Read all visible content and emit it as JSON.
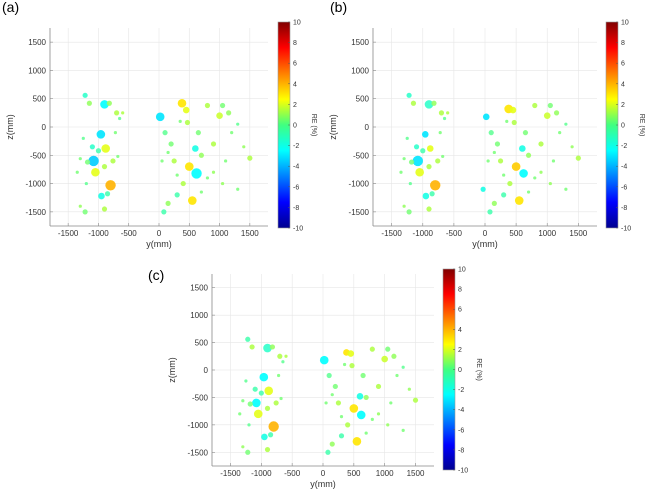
{
  "chart_data": [
    {
      "panel": "(a)",
      "type": "scatter",
      "xlabel": "y(mm)",
      "ylabel": "z(mm)",
      "xlim": [
        -1800,
        1800
      ],
      "ylim": [
        -1750,
        1750
      ],
      "xticks": [
        -1500,
        -1000,
        -500,
        0,
        500,
        1000,
        1500
      ],
      "yticks": [
        -1500,
        -1000,
        -500,
        0,
        500,
        1000,
        1500
      ],
      "grid": true,
      "colorbar": {
        "label": "RE (%)",
        "range": [
          -10,
          10
        ],
        "ticks": [
          -10,
          -8,
          -6,
          -4,
          -2,
          0,
          2,
          4,
          6,
          8,
          10
        ],
        "colormap": "jet"
      },
      "points": [
        [
          -1220,
          560,
          -1.5,
          2
        ],
        [
          -1150,
          420,
          0.5,
          2
        ],
        [
          -900,
          400,
          -2.5,
          4
        ],
        [
          -820,
          420,
          0.5,
          2
        ],
        [
          -700,
          250,
          1,
          2
        ],
        [
          -600,
          250,
          1,
          1
        ],
        [
          -960,
          -130,
          -3,
          4
        ],
        [
          -880,
          -380,
          2,
          4
        ],
        [
          -1000,
          -420,
          -1,
          2
        ],
        [
          -1080,
          -600,
          -3.5,
          5
        ],
        [
          -1180,
          -620,
          0,
          2
        ],
        [
          -1300,
          -560,
          0,
          1
        ],
        [
          -1100,
          -350,
          -1.5,
          2
        ],
        [
          -1050,
          -800,
          2,
          4
        ],
        [
          -760,
          -600,
          1,
          2
        ],
        [
          -680,
          -520,
          0,
          1
        ],
        [
          -900,
          -700,
          1,
          2
        ],
        [
          -800,
          -1030,
          4,
          5
        ],
        [
          -1200,
          -1000,
          -0.5,
          1
        ],
        [
          -950,
          -1220,
          -2,
          3
        ],
        [
          -850,
          -1180,
          -1,
          2
        ],
        [
          -900,
          -1450,
          1,
          2
        ],
        [
          -1220,
          -1500,
          0,
          2
        ],
        [
          -1300,
          -1400,
          0.5,
          1
        ],
        [
          -1350,
          -800,
          0,
          1
        ],
        [
          -1250,
          -200,
          -0.5,
          1
        ],
        [
          -720,
          -100,
          0,
          1
        ],
        [
          -650,
          150,
          -0.5,
          1
        ],
        [
          20,
          180,
          -3,
          4
        ],
        [
          100,
          -100,
          -0.5,
          2
        ],
        [
          200,
          -300,
          0,
          2
        ],
        [
          250,
          -600,
          1,
          2
        ],
        [
          380,
          420,
          3,
          4
        ],
        [
          450,
          300,
          2,
          3
        ],
        [
          470,
          80,
          1,
          2
        ],
        [
          500,
          -700,
          3,
          4
        ],
        [
          620,
          -820,
          -2.5,
          5
        ],
        [
          600,
          -380,
          -2,
          3
        ],
        [
          650,
          -100,
          0,
          2
        ],
        [
          700,
          -500,
          0.5,
          2
        ],
        [
          800,
          380,
          1,
          2
        ],
        [
          900,
          -300,
          1,
          2
        ],
        [
          1000,
          200,
          1.5,
          3
        ],
        [
          1050,
          380,
          0,
          2
        ],
        [
          1150,
          250,
          0.5,
          2
        ],
        [
          1200,
          -100,
          0,
          1
        ],
        [
          1300,
          50,
          -0.5,
          1
        ],
        [
          1400,
          -350,
          0.5,
          1
        ],
        [
          1500,
          -550,
          1,
          2
        ],
        [
          550,
          -1300,
          3,
          4
        ],
        [
          400,
          -1000,
          1,
          2
        ],
        [
          300,
          -1200,
          -1,
          2
        ],
        [
          150,
          -1350,
          0.5,
          2
        ],
        [
          80,
          -1500,
          -1,
          2
        ],
        [
          700,
          -1150,
          0,
          1
        ],
        [
          900,
          -800,
          0.5,
          1
        ],
        [
          1100,
          -600,
          0,
          1
        ],
        [
          1300,
          -1100,
          0,
          1
        ],
        [
          50,
          -600,
          0,
          1
        ],
        [
          150,
          -450,
          0,
          1
        ],
        [
          350,
          100,
          0,
          1
        ],
        [
          300,
          -850,
          0,
          1
        ],
        [
          800,
          -900,
          0,
          1
        ],
        [
          1050,
          -1000,
          0.5,
          1
        ]
      ]
    },
    {
      "panel": "(b)",
      "type": "scatter",
      "xlabel": "y(mm)",
      "ylabel": "z(mm)",
      "xlim": [
        -1800,
        1800
      ],
      "ylim": [
        -1750,
        1750
      ],
      "xticks": [
        -1500,
        -1000,
        -500,
        0,
        500,
        1000,
        1500
      ],
      "yticks": [
        -1500,
        -1000,
        -500,
        0,
        500,
        1000,
        1500
      ],
      "grid": true,
      "colorbar": {
        "label": "RE (%)",
        "range": [
          -10,
          10
        ],
        "ticks": [
          -10,
          -8,
          -6,
          -4,
          -2,
          0,
          2,
          4,
          6,
          8,
          10
        ],
        "colormap": "jet"
      },
      "points": [
        [
          -1220,
          560,
          -1.5,
          2
        ],
        [
          -1150,
          420,
          1,
          2
        ],
        [
          -900,
          400,
          -1.5,
          4
        ],
        [
          -820,
          420,
          0.5,
          2
        ],
        [
          -700,
          250,
          1,
          2
        ],
        [
          -600,
          250,
          1,
          1
        ],
        [
          -960,
          -130,
          -3,
          3
        ],
        [
          -880,
          -380,
          2,
          3
        ],
        [
          -1000,
          -420,
          -1,
          2
        ],
        [
          -1080,
          -600,
          -3,
          5
        ],
        [
          -1180,
          -620,
          0,
          2
        ],
        [
          -1300,
          -560,
          0,
          1
        ],
        [
          -1100,
          -350,
          -1.5,
          2
        ],
        [
          -1050,
          -800,
          2,
          4
        ],
        [
          -760,
          -600,
          1,
          2
        ],
        [
          -680,
          -520,
          0,
          1
        ],
        [
          -900,
          -700,
          1,
          2
        ],
        [
          -800,
          -1030,
          4,
          5
        ],
        [
          -1200,
          -1000,
          -0.5,
          1
        ],
        [
          -950,
          -1220,
          -2,
          3
        ],
        [
          -850,
          -1180,
          -1,
          2
        ],
        [
          -900,
          -1450,
          1,
          2
        ],
        [
          -1220,
          -1500,
          0,
          2
        ],
        [
          -1300,
          -1400,
          0.5,
          1
        ],
        [
          -1350,
          -800,
          0,
          1
        ],
        [
          -1250,
          -200,
          -0.5,
          1
        ],
        [
          -720,
          -100,
          0,
          1
        ],
        [
          -650,
          150,
          -0.5,
          1
        ],
        [
          20,
          180,
          -3,
          3
        ],
        [
          100,
          -100,
          -0.5,
          2
        ],
        [
          200,
          -300,
          0,
          2
        ],
        [
          250,
          -600,
          1,
          2
        ],
        [
          380,
          320,
          3,
          4
        ],
        [
          450,
          300,
          2,
          3
        ],
        [
          470,
          80,
          1,
          2
        ],
        [
          500,
          -700,
          3.5,
          4
        ],
        [
          620,
          -820,
          -2.5,
          4
        ],
        [
          600,
          -380,
          -2,
          3
        ],
        [
          650,
          -100,
          0,
          2
        ],
        [
          700,
          -500,
          0.5,
          2
        ],
        [
          800,
          380,
          1,
          2
        ],
        [
          900,
          -300,
          1,
          2
        ],
        [
          1000,
          200,
          1.5,
          3
        ],
        [
          1050,
          380,
          0,
          2
        ],
        [
          1150,
          250,
          0.5,
          2
        ],
        [
          1200,
          -100,
          0,
          1
        ],
        [
          1300,
          50,
          -0.5,
          1
        ],
        [
          1400,
          -350,
          0.5,
          1
        ],
        [
          1500,
          -550,
          1,
          2
        ],
        [
          550,
          -1300,
          3,
          4
        ],
        [
          400,
          -1000,
          1,
          2
        ],
        [
          300,
          -1200,
          -1,
          2
        ],
        [
          150,
          -1350,
          0.5,
          2
        ],
        [
          80,
          -1500,
          -1,
          2
        ],
        [
          700,
          -1150,
          0,
          1
        ],
        [
          900,
          -800,
          0.5,
          1
        ],
        [
          1100,
          -600,
          0,
          1
        ],
        [
          1300,
          -1100,
          0,
          1
        ],
        [
          -30,
          -1100,
          -2,
          2
        ],
        [
          50,
          -600,
          0,
          1
        ],
        [
          150,
          -450,
          0,
          1
        ],
        [
          350,
          100,
          0,
          1
        ],
        [
          300,
          -850,
          0,
          1
        ],
        [
          800,
          -900,
          0,
          1
        ],
        [
          1050,
          -1000,
          0.5,
          1
        ]
      ]
    },
    {
      "panel": "(c)",
      "type": "scatter",
      "xlabel": "y(mm)",
      "ylabel": "z(mm)",
      "xlim": [
        -1800,
        1800
      ],
      "ylim": [
        -1750,
        1750
      ],
      "xticks": [
        -1500,
        -1000,
        -500,
        0,
        500,
        1000,
        1500
      ],
      "yticks": [
        -1500,
        -1000,
        -500,
        0,
        500,
        1000,
        1500
      ],
      "grid": true,
      "colorbar": {
        "label": "RE (%)",
        "range": [
          -10,
          10
        ],
        "ticks": [
          -10,
          -8,
          -6,
          -4,
          -2,
          0,
          2,
          4,
          6,
          8,
          10
        ],
        "colormap": "jet"
      },
      "points": [
        [
          -1220,
          560,
          -1,
          2
        ],
        [
          -1150,
          420,
          1,
          2
        ],
        [
          -900,
          400,
          -1.5,
          4
        ],
        [
          -820,
          420,
          0.5,
          2
        ],
        [
          -700,
          250,
          1,
          2
        ],
        [
          -600,
          250,
          1,
          1
        ],
        [
          -960,
          -130,
          -2.5,
          4
        ],
        [
          -880,
          -380,
          2,
          4
        ],
        [
          -1000,
          -420,
          -1,
          2
        ],
        [
          -1080,
          -600,
          -2.5,
          4
        ],
        [
          -1180,
          -620,
          0,
          2
        ],
        [
          -1300,
          -560,
          0,
          1
        ],
        [
          -1100,
          -350,
          -1,
          2
        ],
        [
          -1050,
          -800,
          2,
          4
        ],
        [
          -760,
          -600,
          1,
          2
        ],
        [
          -680,
          -520,
          0,
          1
        ],
        [
          -900,
          -700,
          1,
          2
        ],
        [
          -800,
          -1030,
          4,
          5
        ],
        [
          -1200,
          -1000,
          -0.5,
          1
        ],
        [
          -950,
          -1220,
          -2,
          3
        ],
        [
          -850,
          -1180,
          -1,
          2
        ],
        [
          -900,
          -1450,
          1,
          2
        ],
        [
          -1220,
          -1500,
          0,
          2
        ],
        [
          -1300,
          -1400,
          0.5,
          1
        ],
        [
          -1350,
          -800,
          0,
          1
        ],
        [
          -1250,
          -200,
          -0.5,
          1
        ],
        [
          -720,
          -100,
          0,
          1
        ],
        [
          -650,
          150,
          -0.5,
          1
        ],
        [
          20,
          180,
          -2.5,
          4
        ],
        [
          100,
          -100,
          -0.5,
          2
        ],
        [
          200,
          -300,
          0,
          2
        ],
        [
          250,
          -600,
          1,
          2
        ],
        [
          380,
          320,
          3,
          3
        ],
        [
          450,
          300,
          2,
          3
        ],
        [
          470,
          80,
          1,
          2
        ],
        [
          500,
          -700,
          3,
          4
        ],
        [
          620,
          -820,
          -2.5,
          4
        ],
        [
          600,
          -480,
          -2,
          3
        ],
        [
          650,
          -100,
          0,
          2
        ],
        [
          700,
          -500,
          0.5,
          2
        ],
        [
          800,
          380,
          1,
          2
        ],
        [
          900,
          -300,
          1,
          2
        ],
        [
          1000,
          200,
          1.5,
          3
        ],
        [
          1050,
          380,
          0,
          2
        ],
        [
          1150,
          250,
          0.5,
          2
        ],
        [
          1200,
          -100,
          0,
          1
        ],
        [
          1300,
          50,
          -0.5,
          1
        ],
        [
          1400,
          -350,
          0.5,
          1
        ],
        [
          1500,
          -550,
          1,
          2
        ],
        [
          550,
          -1300,
          3,
          4
        ],
        [
          400,
          -1000,
          1,
          2
        ],
        [
          300,
          -1200,
          -1,
          2
        ],
        [
          150,
          -1350,
          0.5,
          2
        ],
        [
          80,
          -1500,
          -1,
          2
        ],
        [
          700,
          -1150,
          0,
          1
        ],
        [
          900,
          -800,
          0.5,
          1
        ],
        [
          1100,
          -600,
          0,
          1
        ],
        [
          1300,
          -1100,
          0,
          1
        ],
        [
          50,
          -600,
          0,
          1
        ],
        [
          150,
          -450,
          0,
          1
        ],
        [
          350,
          100,
          0,
          1
        ],
        [
          300,
          -850,
          0,
          1
        ],
        [
          800,
          -900,
          0,
          1
        ],
        [
          1050,
          -1000,
          0.5,
          1
        ]
      ]
    }
  ]
}
